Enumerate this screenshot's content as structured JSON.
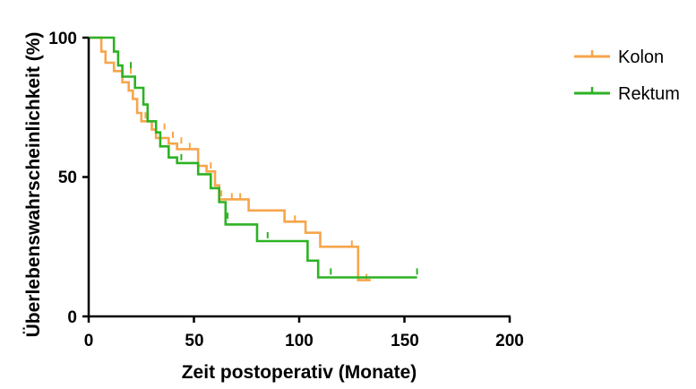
{
  "chart_data": {
    "type": "line",
    "step": true,
    "xlabel": "Zeit postoperativ (Monate)",
    "ylabel": "Überlebenswahrscheinlichkeit (%)",
    "xlim": [
      0,
      200
    ],
    "ylim": [
      0,
      100
    ],
    "xticks": [
      "0",
      "50",
      "100",
      "150",
      "200"
    ],
    "yticks": [
      "0",
      "50",
      "100"
    ],
    "grid": false,
    "legend_position": "top-right",
    "series": [
      {
        "name": "Kolon",
        "color": "#F7A54B",
        "points": [
          [
            0,
            100
          ],
          [
            6,
            100
          ],
          [
            6,
            95
          ],
          [
            8,
            95
          ],
          [
            8,
            91
          ],
          [
            12,
            91
          ],
          [
            12,
            88
          ],
          [
            16,
            88
          ],
          [
            16,
            84
          ],
          [
            19,
            84
          ],
          [
            19,
            81
          ],
          [
            21,
            81
          ],
          [
            21,
            78
          ],
          [
            23,
            78
          ],
          [
            23,
            73
          ],
          [
            25,
            73
          ],
          [
            25,
            70
          ],
          [
            30,
            70
          ],
          [
            30,
            67
          ],
          [
            32,
            67
          ],
          [
            32,
            64
          ],
          [
            38,
            64
          ],
          [
            38,
            62
          ],
          [
            42,
            62
          ],
          [
            42,
            60
          ],
          [
            52,
            60
          ],
          [
            52,
            54
          ],
          [
            56,
            54
          ],
          [
            56,
            52
          ],
          [
            60,
            52
          ],
          [
            60,
            47
          ],
          [
            62,
            47
          ],
          [
            62,
            42
          ],
          [
            76,
            42
          ],
          [
            76,
            38
          ],
          [
            93,
            38
          ],
          [
            93,
            34
          ],
          [
            103,
            34
          ],
          [
            103,
            30
          ],
          [
            110,
            30
          ],
          [
            110,
            25
          ],
          [
            128,
            25
          ],
          [
            128,
            13
          ],
          [
            134,
            13
          ]
        ],
        "censored": [
          [
            20,
            87
          ],
          [
            27,
            71
          ],
          [
            36,
            67
          ],
          [
            40,
            64
          ],
          [
            44,
            62
          ],
          [
            48,
            60
          ],
          [
            52,
            58
          ],
          [
            58,
            53
          ],
          [
            63,
            43
          ],
          [
            68,
            42
          ],
          [
            72,
            42
          ],
          [
            98,
            34
          ],
          [
            110,
            25
          ],
          [
            125,
            25
          ],
          [
            132,
            13
          ]
        ]
      },
      {
        "name": "Rektum",
        "color": "#2DB224",
        "points": [
          [
            0,
            100
          ],
          [
            12,
            100
          ],
          [
            12,
            95
          ],
          [
            14,
            95
          ],
          [
            14,
            90
          ],
          [
            16,
            90
          ],
          [
            16,
            86
          ],
          [
            22,
            86
          ],
          [
            22,
            82
          ],
          [
            26,
            82
          ],
          [
            26,
            76
          ],
          [
            28,
            76
          ],
          [
            28,
            70
          ],
          [
            32,
            70
          ],
          [
            32,
            66
          ],
          [
            34,
            66
          ],
          [
            34,
            61
          ],
          [
            38,
            61
          ],
          [
            38,
            57
          ],
          [
            42,
            57
          ],
          [
            42,
            55
          ],
          [
            52,
            55
          ],
          [
            52,
            51
          ],
          [
            58,
            51
          ],
          [
            58,
            46
          ],
          [
            62,
            46
          ],
          [
            62,
            41
          ],
          [
            65,
            41
          ],
          [
            65,
            33
          ],
          [
            80,
            33
          ],
          [
            80,
            27
          ],
          [
            104,
            27
          ],
          [
            104,
            20
          ],
          [
            109,
            20
          ],
          [
            109,
            14
          ],
          [
            156,
            14
          ]
        ],
        "censored": [
          [
            20,
            89
          ],
          [
            44,
            56
          ],
          [
            66,
            35
          ],
          [
            85,
            28
          ],
          [
            115,
            15
          ],
          [
            156,
            15
          ]
        ]
      }
    ]
  }
}
